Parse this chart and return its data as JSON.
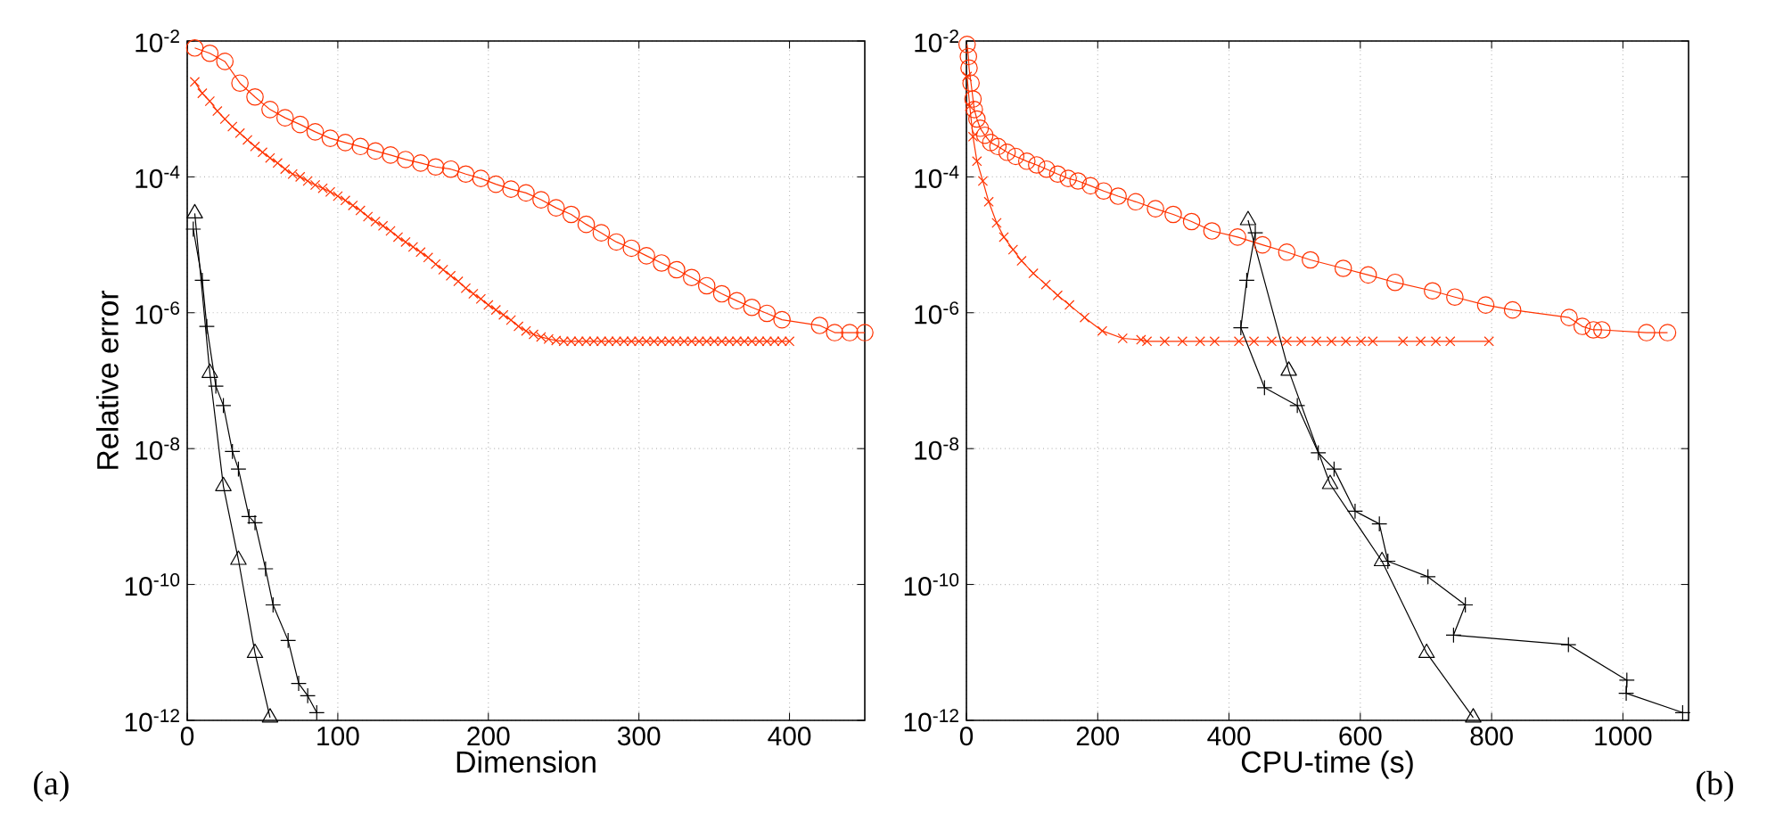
{
  "chart_data": [
    {
      "type": "line",
      "xlabel": "Dimension",
      "ylabel": "Relative error",
      "log": "y",
      "grid": true,
      "xlim": [
        0,
        450
      ],
      "xticks": [
        0,
        100,
        200,
        300,
        400
      ],
      "ylim": [
        1e-12,
        0.01
      ],
      "yticks": [
        {
          "value": 1e-12,
          "label": "10$^{-12}$"
        },
        {
          "value": 1e-10,
          "label": "10$^{-10}$"
        },
        {
          "value": 1e-08,
          "label": "10$^{-8}$"
        },
        {
          "value": 1e-06,
          "label": "10$^{-6}$"
        },
        {
          "value": 0.0001,
          "label": "10$^{-4}$"
        },
        {
          "value": 0.01,
          "label": "10$^{-2}$"
        }
      ],
      "annotations": [
        "(a)"
      ],
      "series": [
        {
          "color": "#ff3300",
          "marker": "circle",
          "x": [
            5,
            15,
            25,
            35,
            45,
            55,
            65,
            75,
            85,
            95,
            105,
            115,
            125,
            135,
            145,
            155,
            165,
            175,
            185,
            195,
            205,
            215,
            225,
            235,
            245,
            255,
            265,
            275,
            285,
            295,
            305,
            315,
            325,
            335,
            345,
            355,
            365,
            375,
            385,
            395,
            420,
            430,
            440,
            450
          ],
          "values": [
            0.0079,
            0.0066,
            0.005,
            0.0024,
            0.0015,
            0.00098,
            0.00074,
            0.00059,
            0.00046,
            0.00037,
            0.00032,
            0.00028,
            0.00024,
            0.00021,
            0.00018,
            0.00016,
            0.00014,
            0.00013,
            0.00011,
            9.5e-05,
            7.8e-05,
            6.6e-05,
            5.8e-05,
            4.6e-05,
            3.5e-05,
            2.8e-05,
            2e-05,
            1.5e-05,
            1.1e-05,
            8.9e-06,
            6.9e-06,
            5.4e-06,
            4.3e-06,
            3.3e-06,
            2.5e-06,
            1.9e-06,
            1.5e-06,
            1.2e-06,
            9.8e-07,
            7.9e-07,
            6.5e-07,
            5.1e-07,
            5.1e-07,
            5.1e-07
          ]
        },
        {
          "color": "#ff3300",
          "marker": "cross",
          "x": [
            5,
            10,
            15,
            20,
            25,
            30,
            35,
            40,
            45,
            50,
            55,
            60,
            65,
            70,
            75,
            80,
            85,
            90,
            95,
            100,
            105,
            110,
            115,
            120,
            125,
            130,
            135,
            140,
            145,
            150,
            155,
            160,
            165,
            170,
            175,
            180,
            185,
            190,
            195,
            200,
            205,
            210,
            215,
            220,
            225,
            230,
            235,
            240,
            245,
            250,
            255,
            260,
            265,
            270,
            275,
            280,
            285,
            290,
            295,
            300,
            305,
            310,
            315,
            320,
            325,
            330,
            335,
            340,
            345,
            350,
            355,
            360,
            365,
            370,
            375,
            380,
            385,
            390,
            395,
            400
          ],
          "values": [
            0.0025,
            0.0017,
            0.0013,
            0.00093,
            0.00071,
            0.00055,
            0.00044,
            0.00035,
            0.00028,
            0.00023,
            0.00019,
            0.00016,
            0.00013,
            0.00011,
            0.0001,
            8.7e-05,
            7.6e-05,
            6.8e-05,
            6e-05,
            5.2e-05,
            4.5e-05,
            3.8e-05,
            3.2e-05,
            2.6e-05,
            2.2e-05,
            1.9e-05,
            1.6e-05,
            1.3e-05,
            1.1e-05,
            9.3e-06,
            7.8e-06,
            6.5e-06,
            5.2e-06,
            4.3e-06,
            3.5e-06,
            2.9e-06,
            2.3e-06,
            1.9e-06,
            1.6e-06,
            1.3e-06,
            1.1e-06,
            9.3e-07,
            7.8e-07,
            6.3e-07,
            5.4e-07,
            4.8e-07,
            4.4e-07,
            4.1e-07,
            3.9e-07,
            3.8e-07,
            3.8e-07,
            3.8e-07,
            3.8e-07,
            3.8e-07,
            3.8e-07,
            3.8e-07,
            3.8e-07,
            3.8e-07,
            3.8e-07,
            3.8e-07,
            3.8e-07,
            3.8e-07,
            3.8e-07,
            3.8e-07,
            3.8e-07,
            3.8e-07,
            3.8e-07,
            3.8e-07,
            3.8e-07,
            3.8e-07,
            3.8e-07,
            3.8e-07,
            3.8e-07,
            3.8e-07,
            3.8e-07,
            3.8e-07,
            3.8e-07,
            3.8e-07,
            3.8e-07,
            3.8e-07
          ]
        },
        {
          "color": "#000000",
          "marker": "plus",
          "x": [
            4,
            10,
            13,
            19,
            24,
            30,
            34,
            41,
            45,
            52,
            57,
            67,
            74,
            80,
            86
          ],
          "values": [
            1.7e-05,
            3e-06,
            6.3e-07,
            8.3e-08,
            4.3e-08,
            9.1e-09,
            5e-09,
            1e-09,
            8.1e-10,
            1.7e-10,
            5e-11,
            1.5e-11,
            3.5e-12,
            2.3e-12,
            1.3e-12
          ]
        },
        {
          "color": "#000000",
          "marker": "triangle",
          "x": [
            5,
            15,
            24,
            34,
            45,
            55
          ],
          "values": [
            2.9e-05,
            1.3e-07,
            2.8e-09,
            2.3e-10,
            9.8e-12,
            1.1e-12
          ]
        }
      ]
    },
    {
      "type": "line",
      "xlabel": "CPU-time (s)",
      "log": "y",
      "grid": true,
      "xlim": [
        0,
        1100
      ],
      "xticks": [
        0,
        200,
        400,
        600,
        800,
        1000
      ],
      "ylim": [
        1e-12,
        0.01
      ],
      "yticks": [
        {
          "value": 1e-12,
          "label": "10$^{-12}$"
        },
        {
          "value": 1e-10,
          "label": "10$^{-10}$"
        },
        {
          "value": 1e-08,
          "label": "10$^{-8}$"
        },
        {
          "value": 1e-06,
          "label": "10$^{-6}$"
        },
        {
          "value": 0.0001,
          "label": "10$^{-4}$"
        },
        {
          "value": 0.01,
          "label": "10$^{-2}$"
        }
      ],
      "annotations": [
        "(b)"
      ],
      "series": [
        {
          "color": "#ff3300",
          "marker": "circle",
          "x": [
            1,
            3,
            4,
            7,
            10,
            12,
            16,
            21,
            28,
            37,
            48,
            62,
            75,
            92,
            107,
            122,
            139,
            155,
            170,
            189,
            209,
            231,
            258,
            288,
            315,
            343,
            374,
            413,
            451,
            488,
            524,
            574,
            612,
            653,
            710,
            744,
            791,
            832,
            918,
            938,
            955,
            968,
            1036,
            1068
          ],
          "values": [
            0.0089,
            0.0059,
            0.004,
            0.0024,
            0.0014,
            0.00098,
            0.00071,
            0.00052,
            0.00041,
            0.00032,
            0.00028,
            0.00023,
            0.0002,
            0.00017,
            0.00015,
            0.00013,
            0.00011,
            9.5e-05,
            8.7e-05,
            7.4e-05,
            6.2e-05,
            5.2e-05,
            4.3e-05,
            3.4e-05,
            2.8e-05,
            2.2e-05,
            1.6e-05,
            1.3e-05,
            1e-05,
            7.8e-06,
            6e-06,
            4.5e-06,
            3.6e-06,
            2.8e-06,
            2.1e-06,
            1.7e-06,
            1.3e-06,
            1.1e-06,
            8.5e-07,
            6.3e-07,
            5.6e-07,
            5.6e-07,
            5.1e-07,
            5.1e-07
          ]
        },
        {
          "color": "#ff3300",
          "marker": "cross",
          "x": [
            1,
            5,
            10,
            16,
            25,
            34,
            46,
            57,
            71,
            84,
            102,
            121,
            139,
            157,
            180,
            207,
            238,
            266,
            275,
            302,
            329,
            356,
            378,
            415,
            438,
            465,
            488,
            510,
            533,
            556,
            578,
            601,
            619,
            665,
            692,
            715,
            737,
            796
          ],
          "values": [
            0.003,
            0.0011,
            0.00039,
            0.00017,
            8.7e-05,
            4.3e-05,
            2.1e-05,
            1.3e-05,
            8.5e-06,
            5.8e-06,
            3.8e-06,
            2.6e-06,
            1.8e-06,
            1.3e-06,
            8.5e-07,
            5.4e-07,
            4.2e-07,
            4e-07,
            3.8e-07,
            3.8e-07,
            3.8e-07,
            3.8e-07,
            3.8e-07,
            3.8e-07,
            3.8e-07,
            3.8e-07,
            3.8e-07,
            3.8e-07,
            3.8e-07,
            3.8e-07,
            3.8e-07,
            3.8e-07,
            3.8e-07,
            3.8e-07,
            3.8e-07,
            3.8e-07,
            3.8e-07,
            3.8e-07
          ]
        },
        {
          "color": "#000000",
          "marker": "plus",
          "x": [
            440,
            427,
            418,
            454,
            504,
            536,
            560,
            592,
            629,
            642,
            703,
            760,
            742,
            917,
            1006,
            1005,
            1091
          ],
          "values": [
            1.5e-05,
            3e-06,
            6e-07,
            7.9e-08,
            4.3e-08,
            8.7e-09,
            5e-09,
            1.2e-09,
            7.8e-10,
            2.2e-10,
            1.3e-10,
            5e-11,
            1.8e-11,
            1.3e-11,
            3.9e-12,
            2.5e-12,
            1.3e-12
          ]
        },
        {
          "color": "#000000",
          "marker": "triangle",
          "x": [
            429,
            491,
            554,
            633,
            701,
            772
          ],
          "values": [
            2.3e-05,
            1.4e-07,
            3e-09,
            2.2e-10,
            9.8e-12,
            1.1e-12
          ]
        }
      ]
    }
  ]
}
